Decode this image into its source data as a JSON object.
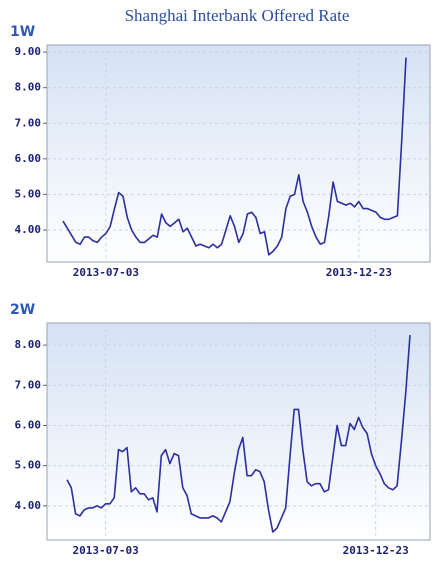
{
  "title": "Shanghai Interbank Offered Rate",
  "chart_data": [
    {
      "type": "line",
      "title": "1W",
      "color": "#2b2fa0",
      "grid": true,
      "categories": [
        null,
        null,
        null,
        null,
        null,
        null,
        null,
        null,
        null,
        null,
        "2013-07-03",
        null,
        null,
        null,
        null,
        null,
        null,
        null,
        null,
        null,
        null,
        null,
        null,
        null,
        null,
        null,
        null,
        null,
        null,
        null,
        null,
        null,
        null,
        null,
        null,
        null,
        null,
        null,
        null,
        null,
        null,
        null,
        null,
        null,
        null,
        null,
        null,
        null,
        null,
        null,
        null,
        null,
        null,
        null,
        null,
        null,
        null,
        null,
        null,
        null,
        null,
        null,
        null,
        null,
        null,
        null,
        null,
        null,
        null,
        "2013-12-23",
        null,
        null,
        null,
        null,
        null,
        null,
        null,
        null,
        null,
        null,
        null
      ],
      "values": [
        4.25,
        4.05,
        3.85,
        3.65,
        3.6,
        3.8,
        3.8,
        3.7,
        3.65,
        3.8,
        3.9,
        4.1,
        4.6,
        5.05,
        4.95,
        4.35,
        4.0,
        3.8,
        3.65,
        3.65,
        3.75,
        3.85,
        3.8,
        4.45,
        4.2,
        4.1,
        4.2,
        4.3,
        3.95,
        4.05,
        3.8,
        3.55,
        3.6,
        3.55,
        3.5,
        3.6,
        3.5,
        3.6,
        4.0,
        4.4,
        4.1,
        3.65,
        3.9,
        4.45,
        4.5,
        4.35,
        3.9,
        3.95,
        3.3,
        3.4,
        3.55,
        3.8,
        4.6,
        4.95,
        5.0,
        5.55,
        4.8,
        4.5,
        4.1,
        3.8,
        3.6,
        3.65,
        4.4,
        5.35,
        4.8,
        4.75,
        4.7,
        4.75,
        4.65,
        4.8,
        4.6,
        4.6,
        4.55,
        4.5,
        4.35,
        4.3,
        4.3,
        4.35,
        4.4,
        6.5,
        8.85
      ],
      "ylim": [
        3.1,
        9.2
      ],
      "yticks": [
        {
          "value": 4,
          "label": "4.00"
        },
        {
          "value": 5,
          "label": "5.00"
        },
        {
          "value": 6,
          "label": "6.00"
        },
        {
          "value": 7,
          "label": "7.00"
        },
        {
          "value": 8,
          "label": "8.00"
        },
        {
          "value": 9,
          "label": "9.00"
        }
      ]
    },
    {
      "type": "line",
      "title": "2W",
      "color": "#2b2fa0",
      "grid": true,
      "categories": [
        null,
        null,
        null,
        null,
        null,
        null,
        null,
        null,
        null,
        "2013-07-03",
        null,
        null,
        null,
        null,
        null,
        null,
        null,
        null,
        null,
        null,
        null,
        null,
        null,
        null,
        null,
        null,
        null,
        null,
        null,
        null,
        null,
        null,
        null,
        null,
        null,
        null,
        null,
        null,
        null,
        null,
        null,
        null,
        null,
        null,
        null,
        null,
        null,
        null,
        null,
        null,
        null,
        null,
        null,
        null,
        null,
        null,
        null,
        null,
        null,
        null,
        null,
        null,
        null,
        null,
        null,
        null,
        null,
        null,
        null,
        null,
        null,
        null,
        "2013-12-23",
        null,
        null,
        null,
        null,
        null,
        null,
        null,
        null
      ],
      "values": [
        4.65,
        4.45,
        3.8,
        3.75,
        3.9,
        3.95,
        3.95,
        4.0,
        3.95,
        4.05,
        4.05,
        4.2,
        5.4,
        5.35,
        5.45,
        4.35,
        4.45,
        4.3,
        4.3,
        4.15,
        4.2,
        3.85,
        5.25,
        5.4,
        5.05,
        5.3,
        5.25,
        4.45,
        4.25,
        3.8,
        3.75,
        3.7,
        3.7,
        3.7,
        3.75,
        3.7,
        3.6,
        3.85,
        4.1,
        4.8,
        5.4,
        5.7,
        4.75,
        4.75,
        4.9,
        4.85,
        4.6,
        3.9,
        3.35,
        3.45,
        3.7,
        3.95,
        5.2,
        6.4,
        6.4,
        5.4,
        4.6,
        4.5,
        4.55,
        4.55,
        4.35,
        4.4,
        5.2,
        6.0,
        5.5,
        5.5,
        6.05,
        5.9,
        6.2,
        5.95,
        5.8,
        5.3,
        5.0,
        4.8,
        4.55,
        4.45,
        4.4,
        4.5,
        5.6,
        6.8,
        8.25
      ],
      "ylim": [
        3.15,
        8.55
      ],
      "yticks": [
        {
          "value": 4,
          "label": "4.00"
        },
        {
          "value": 5,
          "label": "5.00"
        },
        {
          "value": 6,
          "label": "6.00"
        },
        {
          "value": 7,
          "label": "7.00"
        },
        {
          "value": 8,
          "label": "8.00"
        }
      ]
    }
  ]
}
